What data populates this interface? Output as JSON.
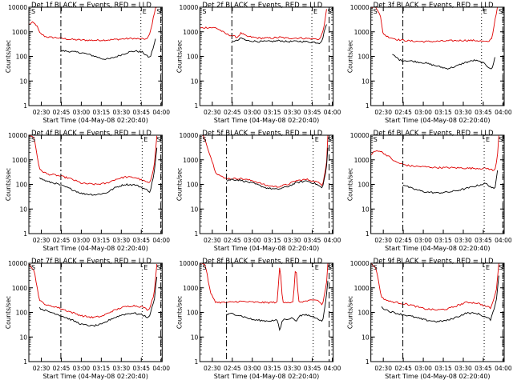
{
  "figure": {
    "series_colors": {
      "events": "#000000",
      "lld": "#e00000"
    }
  },
  "chart_data": [
    {
      "type": "line",
      "title": "Det 1f BLACK = Events, RED = LLD",
      "ylabel": "Counts/sec",
      "xlabel": "Start Time (04-May-08 02:20:40)",
      "yscale": "log",
      "ylim": [
        1,
        10000
      ],
      "y_ticks": [
        1,
        10,
        100,
        1000,
        10000
      ],
      "x_ticks": [
        "02:30",
        "02:45",
        "03:00",
        "03:15",
        "03:30",
        "03:45",
        "04:00"
      ],
      "xlim_minutes": [
        0,
        100
      ],
      "markers": [
        "S",
        "E",
        "S"
      ],
      "vlines": [
        {
          "t": 24,
          "style": "dashdot"
        },
        {
          "t": 84,
          "style": "dotted"
        },
        {
          "t": 99,
          "style": "dashed"
        }
      ],
      "series": [
        {
          "key": "lld",
          "t": [
            0,
            3,
            6,
            8,
            12,
            15,
            20,
            30,
            40,
            50,
            60,
            70,
            78,
            80,
            85,
            89,
            91,
            93,
            95,
            96
          ],
          "values": [
            2000,
            2400,
            1800,
            900,
            650,
            600,
            580,
            500,
            460,
            450,
            470,
            510,
            540,
            520,
            510,
            520,
            900,
            3000,
            10000,
            10000
          ]
        },
        {
          "key": "events",
          "t": [
            24,
            30,
            40,
            50,
            55,
            60,
            65,
            70,
            75,
            80,
            85,
            89,
            91,
            93,
            95
          ],
          "values": [
            170,
            160,
            140,
            100,
            80,
            78,
            95,
            120,
            150,
            165,
            150,
            100,
            90,
            200,
            500
          ]
        }
      ]
    },
    {
      "type": "line",
      "title": "Det 2f BLACK = Events, RED = LLD",
      "ylabel": "Counts/sec",
      "xlabel": "Start Time (04-May-08 02:20:40)",
      "yscale": "log",
      "ylim": [
        1,
        10000
      ],
      "y_ticks": [
        1,
        10,
        100,
        1000,
        10000
      ],
      "x_ticks": [
        "02:30",
        "02:45",
        "03:00",
        "03:15",
        "03:30",
        "03:45",
        "04:00"
      ],
      "xlim_minutes": [
        0,
        100
      ],
      "markers": [
        "S",
        "E",
        "S"
      ],
      "vlines": [
        {
          "t": 24,
          "style": "dashdot"
        },
        {
          "t": 84,
          "style": "dotted"
        },
        {
          "t": 97,
          "style": "dashed"
        }
      ],
      "series": [
        {
          "key": "lld",
          "t": [
            0,
            5,
            12,
            16,
            20,
            24,
            28,
            31,
            35,
            45,
            55,
            60,
            65,
            75,
            85,
            90,
            92,
            94,
            95
          ],
          "values": [
            1400,
            1500,
            1450,
            1100,
            800,
            700,
            600,
            900,
            650,
            550,
            560,
            600,
            550,
            560,
            520,
            500,
            900,
            3000,
            8000
          ]
        },
        {
          "key": "events",
          "t": [
            24,
            28,
            31,
            35,
            45,
            55,
            60,
            65,
            75,
            85,
            90,
            92,
            94,
            95
          ],
          "values": [
            420,
            430,
            560,
            440,
            400,
            410,
            440,
            400,
            410,
            380,
            350,
            500,
            1500,
            2000
          ]
        }
      ]
    },
    {
      "type": "line",
      "title": "Det 3f BLACK = Events, RED = LLD",
      "ylabel": "Counts/sec",
      "xlabel": "Start Time (04-May-08 02:20:40)",
      "yscale": "log",
      "ylim": [
        1,
        10000
      ],
      "y_ticks": [
        1,
        10,
        100,
        1000,
        10000
      ],
      "x_ticks": [
        "02:30",
        "02:45",
        "03:00",
        "03:15",
        "03:30",
        "03:45",
        "04:00"
      ],
      "xlim_minutes": [
        0,
        100
      ],
      "markers": [
        "S",
        "E",
        "S"
      ],
      "vlines": [
        {
          "t": 24,
          "style": "dashdot"
        },
        {
          "t": 83,
          "style": "dotted"
        },
        {
          "t": 99,
          "style": "dashed"
        }
      ],
      "series": [
        {
          "key": "lld",
          "t": [
            0,
            4,
            7,
            9,
            12,
            20,
            30,
            40,
            50,
            60,
            70,
            80,
            88,
            91,
            93,
            95
          ],
          "values": [
            10000,
            10000,
            5000,
            900,
            650,
            480,
            420,
            400,
            410,
            430,
            450,
            440,
            380,
            600,
            3000,
            10000
          ]
        },
        {
          "key": "events",
          "t": [
            16,
            22,
            30,
            40,
            50,
            57,
            63,
            70,
            78,
            84,
            88,
            91,
            93
          ],
          "values": [
            120,
            70,
            65,
            55,
            40,
            32,
            38,
            55,
            70,
            55,
            38,
            30,
            90
          ]
        }
      ]
    },
    {
      "type": "line",
      "title": "Det 4f BLACK = Events, RED = LLD",
      "ylabel": "Counts/sec",
      "xlabel": "Start Time (04-May-08 02:20:40)",
      "yscale": "log",
      "ylim": [
        1,
        10000
      ],
      "y_ticks": [
        1,
        10,
        100,
        1000,
        10000
      ],
      "x_ticks": [
        "02:30",
        "02:45",
        "03:00",
        "03:15",
        "03:30",
        "03:45",
        "04:00"
      ],
      "xlim_minutes": [
        0,
        100
      ],
      "markers": [
        "S",
        "E",
        "S"
      ],
      "vlines": [
        {
          "t": 24,
          "style": "dashdot"
        },
        {
          "t": 85,
          "style": "dotted"
        },
        {
          "t": 99,
          "style": "dashed"
        }
      ],
      "series": [
        {
          "key": "lld",
          "t": [
            0,
            4,
            8,
            14,
            20,
            30,
            40,
            50,
            58,
            65,
            72,
            80,
            86,
            91,
            94,
            96
          ],
          "values": [
            10000,
            8000,
            400,
            260,
            240,
            180,
            110,
            100,
            110,
            160,
            200,
            190,
            140,
            110,
            600,
            10000
          ]
        },
        {
          "key": "events",
          "t": [
            8,
            14,
            20,
            30,
            40,
            50,
            58,
            65,
            72,
            80,
            86,
            91,
            94,
            96
          ],
          "values": [
            180,
            130,
            110,
            70,
            42,
            38,
            45,
            75,
            100,
            95,
            70,
            50,
            300,
            3000
          ]
        }
      ]
    },
    {
      "type": "line",
      "title": "Det 5f BLACK = Events, RED = LLD",
      "ylabel": "Counts/sec",
      "xlabel": "Start Time (04-May-08 02:20:40)",
      "yscale": "log",
      "ylim": [
        1,
        10000
      ],
      "y_ticks": [
        1,
        10,
        100,
        1000,
        10000
      ],
      "x_ticks": [
        "02:30",
        "02:45",
        "03:00",
        "03:15",
        "03:30",
        "03:45",
        "04:00"
      ],
      "xlim_minutes": [
        0,
        100
      ],
      "markers": [
        "S",
        "E",
        "S"
      ],
      "vlines": [
        {
          "t": 20,
          "style": "dashdot"
        },
        {
          "t": 85,
          "style": "dotted"
        },
        {
          "t": 97,
          "style": "dashed"
        }
      ],
      "series": [
        {
          "key": "lld",
          "t": [
            0,
            3,
            7,
            12,
            18,
            24,
            30,
            40,
            50,
            58,
            66,
            72,
            80,
            87,
            92,
            95,
            96
          ],
          "values": [
            10000,
            9000,
            2000,
            300,
            180,
            170,
            175,
            140,
            90,
            80,
            100,
            140,
            160,
            130,
            95,
            700,
            10000
          ]
        },
        {
          "key": "events",
          "t": [
            20,
            24,
            30,
            40,
            50,
            58,
            66,
            72,
            80,
            87,
            92,
            95,
            96
          ],
          "values": [
            140,
            160,
            150,
            110,
            72,
            62,
            82,
            115,
            140,
            105,
            70,
            500,
            3000
          ]
        }
      ]
    },
    {
      "type": "line",
      "title": "Det 6f BLACK = Events, RED = LLD",
      "ylabel": "Counts/sec",
      "xlabel": "Start Time (04-May-08 02:20:40)",
      "yscale": "log",
      "ylim": [
        1,
        10000
      ],
      "y_ticks": [
        1,
        10,
        100,
        1000,
        10000
      ],
      "x_ticks": [
        "02:30",
        "02:45",
        "03:00",
        "03:15",
        "03:30",
        "03:45",
        "04:00"
      ],
      "xlim_minutes": [
        0,
        100
      ],
      "markers": [
        "S",
        "E",
        "S"
      ],
      "vlines": [
        {
          "t": 24,
          "style": "dashdot"
        },
        {
          "t": 85,
          "style": "dotted"
        },
        {
          "t": 99,
          "style": "dashed"
        }
      ],
      "series": [
        {
          "key": "lld",
          "t": [
            0,
            3,
            6,
            10,
            14,
            18,
            24,
            30,
            40,
            50,
            60,
            70,
            80,
            88,
            93,
            95,
            96
          ],
          "values": [
            1600,
            2200,
            2400,
            1800,
            1300,
            850,
            650,
            560,
            520,
            480,
            480,
            460,
            450,
            440,
            350,
            1500,
            10000
          ]
        },
        {
          "key": "events",
          "t": [
            24,
            30,
            40,
            50,
            60,
            70,
            80,
            86,
            90,
            93,
            95
          ],
          "values": [
            100,
            70,
            50,
            45,
            50,
            65,
            90,
            110,
            80,
            60,
            400
          ]
        }
      ]
    },
    {
      "type": "line",
      "title": "Det 7f BLACK = Events, RED = LLD",
      "ylabel": "Counts/sec",
      "xlabel": "Start Time (04-May-08 02:20:40)",
      "yscale": "log",
      "ylim": [
        1,
        10000
      ],
      "y_ticks": [
        1,
        10,
        100,
        1000,
        10000
      ],
      "x_ticks": [
        "02:30",
        "02:45",
        "03:00",
        "03:15",
        "03:30",
        "03:45",
        "04:00"
      ],
      "xlim_minutes": [
        0,
        100
      ],
      "markers": [
        "S",
        "E",
        "S"
      ],
      "vlines": [
        {
          "t": 24,
          "style": "dashdot"
        },
        {
          "t": 85,
          "style": "dotted"
        },
        {
          "t": 99,
          "style": "dashed"
        }
      ],
      "series": [
        {
          "key": "lld",
          "t": [
            0,
            4,
            8,
            14,
            20,
            30,
            40,
            48,
            55,
            62,
            70,
            78,
            85,
            90,
            94,
            96
          ],
          "values": [
            10000,
            5000,
            300,
            190,
            170,
            110,
            72,
            62,
            70,
            110,
            160,
            190,
            170,
            120,
            600,
            10000
          ]
        },
        {
          "key": "events",
          "t": [
            8,
            14,
            20,
            30,
            40,
            48,
            55,
            62,
            70,
            78,
            85,
            90,
            94,
            96
          ],
          "values": [
            150,
            110,
            90,
            55,
            32,
            28,
            33,
            55,
            80,
            95,
            80,
            60,
            300,
            3000
          ]
        }
      ]
    },
    {
      "type": "line",
      "title": "Det 8f BLACK = Events, RED = LLD",
      "ylabel": "Counts/sec",
      "xlabel": "Start Time (04-May-08 02:20:40)",
      "yscale": "log",
      "ylim": [
        1,
        10000
      ],
      "y_ticks": [
        1,
        10,
        100,
        1000,
        10000
      ],
      "x_ticks": [
        "02:30",
        "02:45",
        "03:00",
        "03:15",
        "03:30",
        "03:45",
        "04:00"
      ],
      "xlim_minutes": [
        0,
        100
      ],
      "markers": [
        "S",
        "E",
        "S"
      ],
      "vlines": [
        {
          "t": 20,
          "style": "dashdot"
        },
        {
          "t": 85,
          "style": "dotted"
        },
        {
          "t": 97,
          "style": "dashed"
        }
      ],
      "series": [
        {
          "key": "lld",
          "t": [
            0,
            4,
            8,
            12,
            20,
            30,
            40,
            50,
            58,
            60,
            62,
            70,
            72,
            74,
            80,
            88,
            92,
            95,
            96
          ],
          "values": [
            10000,
            9000,
            600,
            260,
            250,
            280,
            260,
            250,
            260,
            10000,
            270,
            250,
            10000,
            260,
            290,
            320,
            200,
            1500,
            10000
          ]
        },
        {
          "key": "events",
          "t": [
            20,
            24,
            30,
            40,
            50,
            58,
            60,
            62,
            70,
            72,
            74,
            80,
            88,
            92,
            95,
            96
          ],
          "values": [
            80,
            90,
            75,
            50,
            45,
            48,
            18,
            50,
            60,
            40,
            70,
            80,
            60,
            40,
            500,
            2000
          ]
        }
      ]
    },
    {
      "type": "line",
      "title": "Det 9f BLACK = Events, RED = LLD",
      "ylabel": "Counts/sec",
      "xlabel": "Start Time (04-May-08 02:20:40)",
      "yscale": "log",
      "ylim": [
        1,
        10000
      ],
      "y_ticks": [
        1,
        10,
        100,
        1000,
        10000
      ],
      "x_ticks": [
        "02:30",
        "02:45",
        "03:00",
        "03:15",
        "03:30",
        "03:45",
        "04:00"
      ],
      "xlim_minutes": [
        0,
        100
      ],
      "markers": [
        "S",
        "E",
        "S"
      ],
      "vlines": [
        {
          "t": 24,
          "style": "dashdot"
        },
        {
          "t": 85,
          "style": "dotted"
        },
        {
          "t": 99,
          "style": "dashed"
        }
      ],
      "series": [
        {
          "key": "lld",
          "t": [
            0,
            4,
            8,
            14,
            20,
            30,
            40,
            50,
            58,
            66,
            72,
            80,
            86,
            90,
            94,
            96
          ],
          "values": [
            10000,
            6000,
            400,
            280,
            250,
            200,
            140,
            125,
            140,
            200,
            260,
            240,
            180,
            150,
            700,
            10000
          ]
        },
        {
          "key": "events",
          "t": [
            8,
            14,
            20,
            30,
            40,
            50,
            58,
            66,
            72,
            80,
            86,
            90,
            94,
            96
          ],
          "values": [
            160,
            110,
            90,
            70,
            50,
            42,
            48,
            70,
            95,
            90,
            65,
            50,
            300,
            3000
          ]
        }
      ]
    }
  ]
}
